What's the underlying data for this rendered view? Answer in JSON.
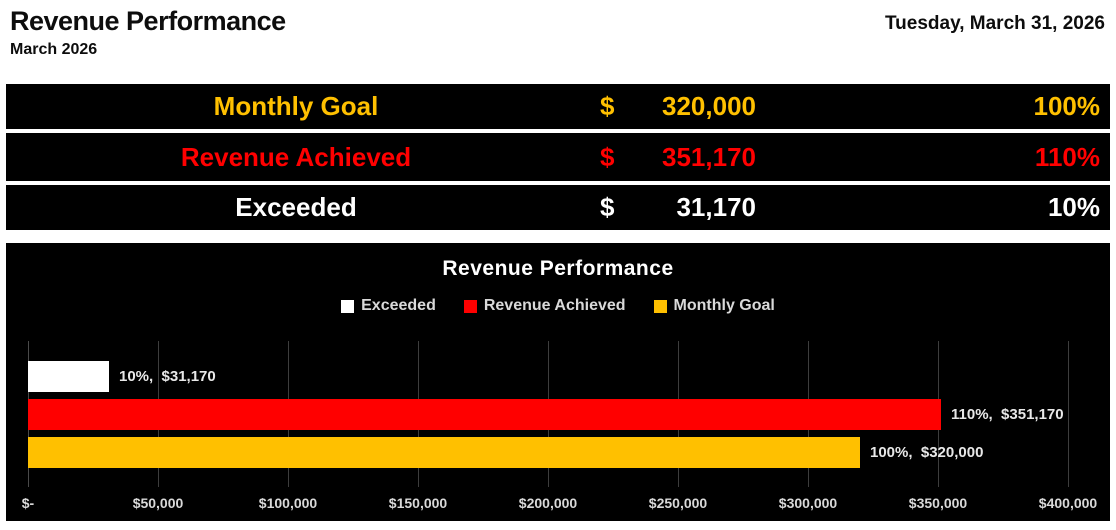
{
  "header": {
    "title": "Revenue Performance",
    "subtitle": "March 2026",
    "date": "Tuesday, March 31, 2026"
  },
  "summary_rows": [
    {
      "label": "Monthly Goal",
      "currency": "$",
      "value": "320,000",
      "percent": "100%",
      "color": "#FFC000"
    },
    {
      "label": "Revenue Achieved",
      "currency": "$",
      "value": "351,170",
      "percent": "110%",
      "color": "#FF0000"
    },
    {
      "label": "Exceeded",
      "currency": "$",
      "value": "31,170",
      "percent": "10%",
      "color": "#FFFFFF"
    }
  ],
  "chart_data": {
    "type": "bar",
    "orientation": "horizontal",
    "title": "Revenue Performance",
    "legend_position": "top",
    "legend": [
      {
        "label": "Exceeded",
        "color": "#FFFFFF"
      },
      {
        "label": "Revenue Achieved",
        "color": "#FF0000"
      },
      {
        "label": "Monthly Goal",
        "color": "#FFC000"
      }
    ],
    "categories": [
      "Exceeded",
      "Revenue Achieved",
      "Monthly Goal"
    ],
    "values": [
      31170,
      351170,
      320000
    ],
    "bar_colors": [
      "#FFFFFF",
      "#FF0000",
      "#FFC000"
    ],
    "data_labels": [
      "10%,  $31,170",
      "110%,  $351,170",
      "100%,  $320,000"
    ],
    "percent_of_goal": [
      10,
      110,
      100
    ],
    "xlim": [
      0,
      400000
    ],
    "x_tick_interval": 50000,
    "x_tick_labels": [
      "$-",
      "$50,000",
      "$100,000",
      "$150,000",
      "$200,000",
      "$250,000",
      "$300,000",
      "$350,000",
      "$400,000"
    ],
    "grid": true,
    "background": "#000000"
  }
}
